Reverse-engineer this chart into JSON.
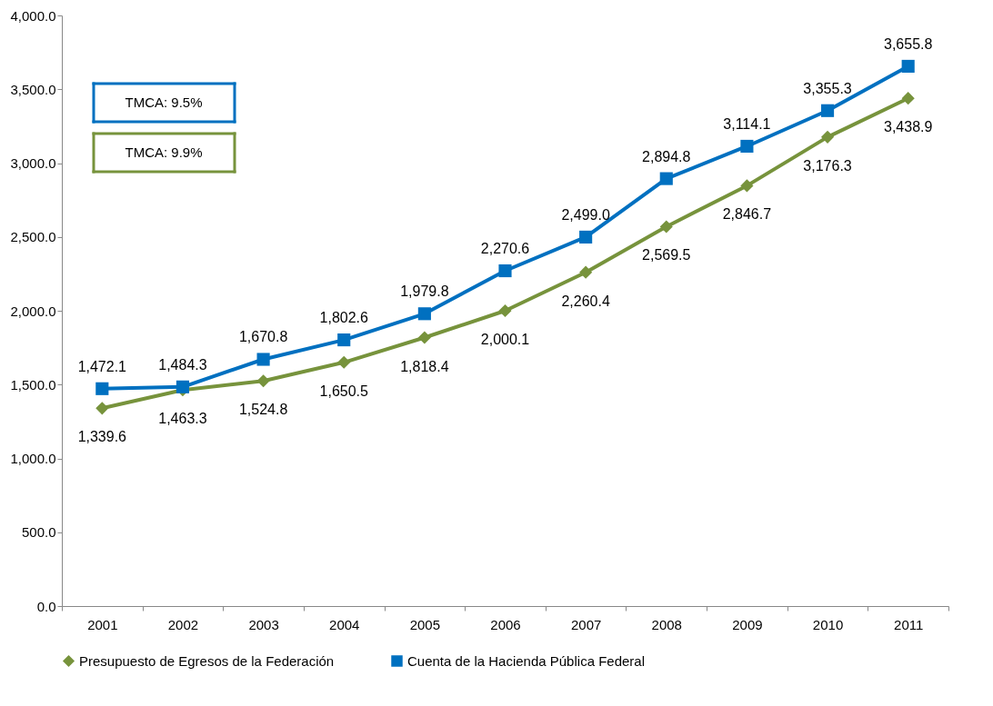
{
  "chart_data": {
    "type": "line",
    "categories": [
      "2001",
      "2002",
      "2003",
      "2004",
      "2005",
      "2006",
      "2007",
      "2008",
      "2009",
      "2010",
      "2011"
    ],
    "series": [
      {
        "name": "Presupuesto de Egresos de la Federación",
        "color": "#77933c",
        "marker": "diamond",
        "values": [
          1339.6,
          1463.3,
          1524.8,
          1650.5,
          1818.4,
          2000.1,
          2260.4,
          2569.5,
          2846.7,
          3176.3,
          3438.9
        ],
        "value_labels": [
          "1,339.6",
          "1,463.3",
          "1,524.8",
          "1,650.5",
          "1,818.4",
          "2,000.1",
          "2,260.4",
          "2,569.5",
          "2,846.7",
          "3,176.3",
          "3,438.9"
        ]
      },
      {
        "name": "Cuenta de la Hacienda Pública Federal",
        "color": "#0070c0",
        "marker": "square",
        "values": [
          1472.1,
          1484.3,
          1670.8,
          1802.6,
          1979.8,
          2270.6,
          2499.0,
          2894.8,
          3114.1,
          3355.3,
          3655.8
        ],
        "value_labels": [
          "1,472.1",
          "1,484.3",
          "1,670.8",
          "1,802.6",
          "1,979.8",
          "2,270.6",
          "2,499.0",
          "2,894.8",
          "3,114.1",
          "3,355.3",
          "3,655.8"
        ]
      }
    ],
    "ylim": [
      0,
      4000
    ],
    "yticks": [
      {
        "value": 0,
        "label": "0.0"
      },
      {
        "value": 500,
        "label": "500.0"
      },
      {
        "value": 1000,
        "label": "1,000.0"
      },
      {
        "value": 1500,
        "label": "1,500.0"
      },
      {
        "value": 2000,
        "label": "2,000.0"
      },
      {
        "value": 2500,
        "label": "2,500.0"
      },
      {
        "value": 3000,
        "label": "3,000.0"
      },
      {
        "value": 3500,
        "label": "3,500.0"
      },
      {
        "value": 4000,
        "label": "4,000.0"
      }
    ],
    "annotations": [
      "TMCA: 9.5%",
      "TMCA: 9.9%"
    ],
    "grid": false,
    "legend": "bottom",
    "line_style": "solid"
  }
}
